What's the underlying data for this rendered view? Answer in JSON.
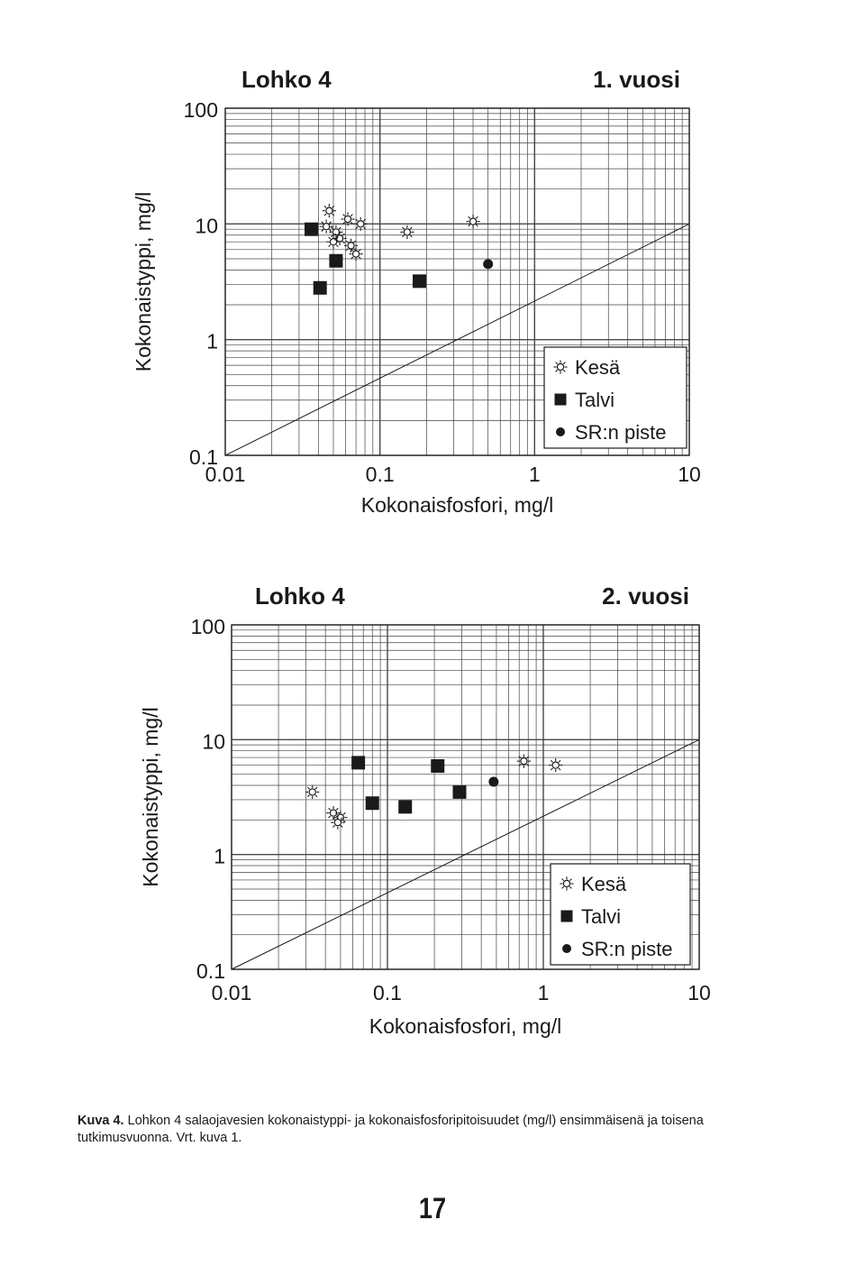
{
  "chart_data": [
    {
      "type": "scatter",
      "title": "Lohko 4",
      "subtitle": "1. vuosi",
      "xlabel": "Kokonaisfosfori, mg/l",
      "ylabel": "Kokonaistyppi, mg/l",
      "xscale": "log",
      "yscale": "log",
      "xlim": [
        0.01,
        10
      ],
      "ylim": [
        0.1,
        100
      ],
      "xticks": [
        "0.01",
        "0.1",
        "1",
        "10"
      ],
      "yticks": [
        "0.1",
        "1",
        "10",
        "100"
      ],
      "grid": true,
      "reference_line": "1:1 diagonal",
      "legend_position": "bottom-right",
      "series": [
        {
          "name": "Kesä",
          "marker": "sun",
          "points": [
            [
              0.047,
              13.0
            ],
            [
              0.062,
              11.0
            ],
            [
              0.075,
              10.0
            ],
            [
              0.045,
              9.5
            ],
            [
              0.052,
              8.5
            ],
            [
              0.055,
              7.5
            ],
            [
              0.05,
              7.0
            ],
            [
              0.065,
              6.5
            ],
            [
              0.07,
              5.5
            ],
            [
              0.15,
              8.5
            ],
            [
              0.4,
              10.5
            ]
          ]
        },
        {
          "name": "Talvi",
          "marker": "square",
          "points": [
            [
              0.036,
              9.0
            ],
            [
              0.052,
              4.8
            ],
            [
              0.041,
              2.8
            ],
            [
              0.18,
              3.2
            ]
          ]
        },
        {
          "name": "SR:n piste",
          "marker": "dot",
          "points": [
            [
              0.5,
              4.5
            ]
          ]
        }
      ]
    },
    {
      "type": "scatter",
      "title": "Lohko 4",
      "subtitle": "2. vuosi",
      "xlabel": "Kokonaisfosfori, mg/l",
      "ylabel": "Kokonaistyppi, mg/l",
      "xscale": "log",
      "yscale": "log",
      "xlim": [
        0.01,
        10
      ],
      "ylim": [
        0.1,
        100
      ],
      "xticks": [
        "0.01",
        "0.1",
        "1",
        "10"
      ],
      "yticks": [
        "0.1",
        "1",
        "10",
        "100"
      ],
      "grid": true,
      "reference_line": "1:1 diagonal",
      "legend_position": "bottom-right",
      "series": [
        {
          "name": "Kesä",
          "marker": "sun",
          "points": [
            [
              0.033,
              3.5
            ],
            [
              0.045,
              2.3
            ],
            [
              0.05,
              2.1
            ],
            [
              0.048,
              1.9
            ],
            [
              0.75,
              6.5
            ],
            [
              1.2,
              6.0
            ]
          ]
        },
        {
          "name": "Talvi",
          "marker": "square",
          "points": [
            [
              0.065,
              6.3
            ],
            [
              0.08,
              2.8
            ],
            [
              0.13,
              2.6
            ],
            [
              0.21,
              5.9
            ],
            [
              0.29,
              3.5
            ]
          ]
        },
        {
          "name": "SR:n piste",
          "marker": "dot",
          "points": [
            [
              0.48,
              4.3
            ]
          ]
        }
      ]
    }
  ],
  "caption": {
    "label": "Kuva 4.",
    "text": "Lohkon 4 salaojavesien kokonaistyppi- ja kokonaisfosforipitoisuudet (mg/l) ensimmäisenä ja toisena tutkimusvuonna. Vrt. kuva 1."
  },
  "page_number": "17",
  "colors": {
    "ink": "#1a1a1a",
    "grid": "#444444",
    "background": "#ffffff"
  }
}
